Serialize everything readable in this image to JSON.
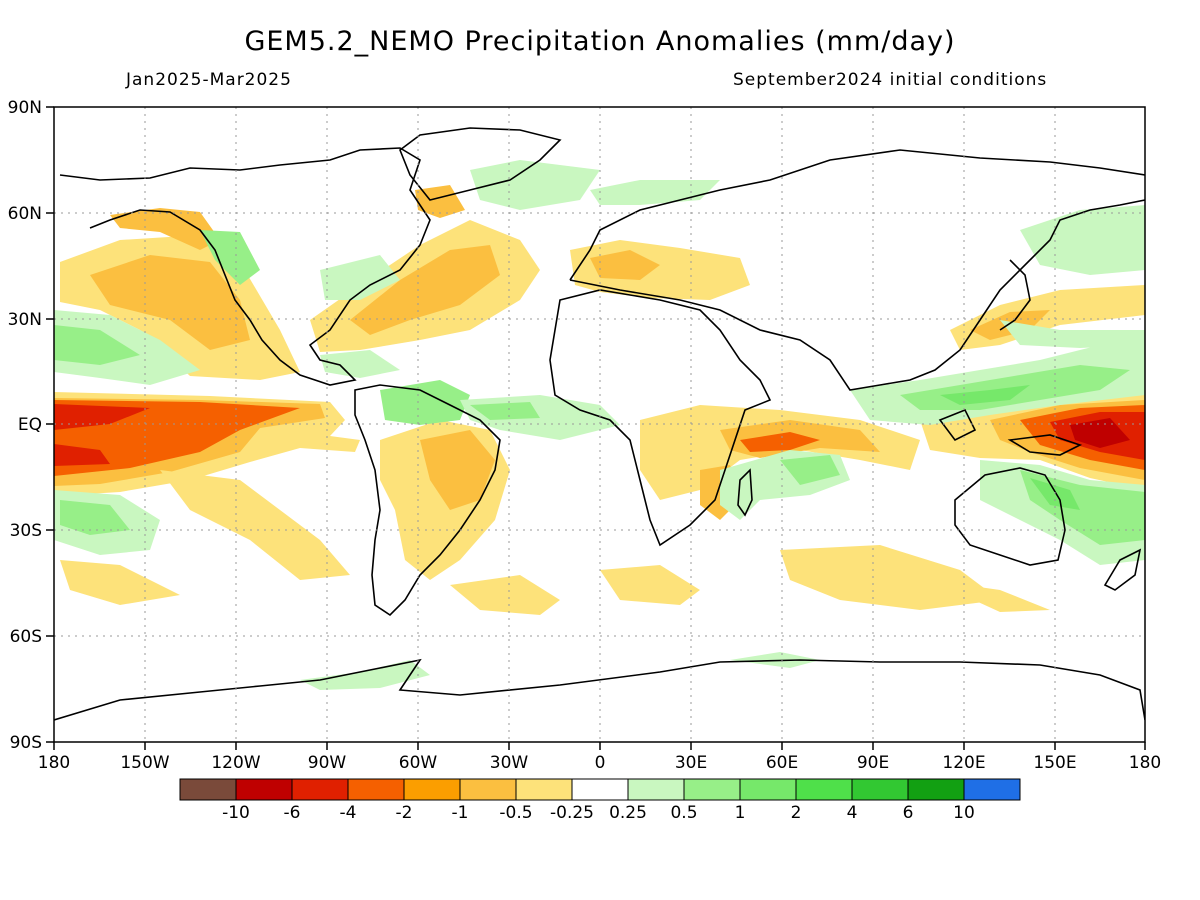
{
  "title": "GEM5.2_NEMO Precipitation Anomalies (mm/day)",
  "period": "Jan2025-Mar2025",
  "initial_conditions": "September2024 initial conditions",
  "lat_labels": [
    "90N",
    "60N",
    "30N",
    "EQ",
    "30S",
    "60S",
    "90S"
  ],
  "lon_labels": [
    "180",
    "150W",
    "120W",
    "90W",
    "60W",
    "30W",
    "0",
    "30E",
    "60E",
    "90E",
    "120E",
    "150E",
    "180"
  ],
  "colorbar": {
    "colors": [
      "#7a4a3a",
      "#bf0000",
      "#e02000",
      "#f56000",
      "#fb9e00",
      "#fbbf40",
      "#fde27a",
      "#ffffff",
      "#c9f7c0",
      "#97ef88",
      "#76e86a",
      "#4fe04a",
      "#32c832",
      "#12a012",
      "#1f6fe6"
    ],
    "labels": [
      "-10",
      "-6",
      "-4",
      "-2",
      "-1",
      "-0.5",
      "-0.25",
      "0.25",
      "0.5",
      "1",
      "2",
      "4",
      "6",
      "10"
    ]
  }
}
